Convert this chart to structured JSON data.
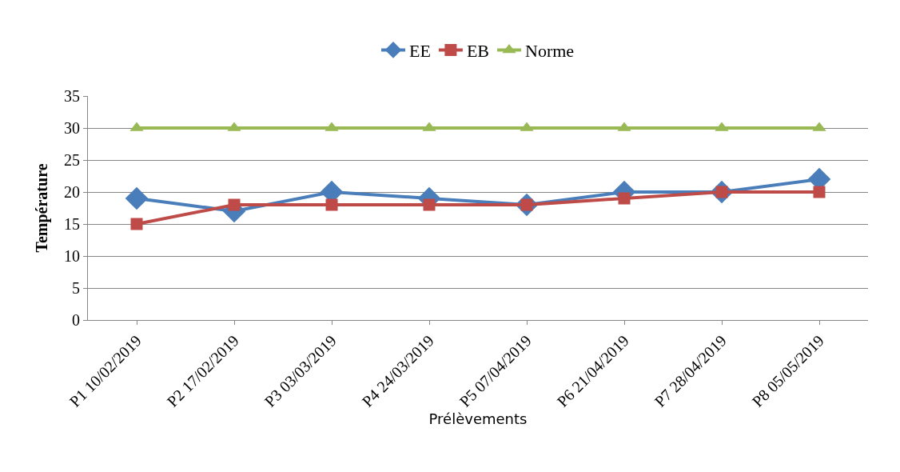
{
  "chart_data": {
    "type": "line",
    "xlabel": "Prélèvements",
    "ylabel": "Température",
    "categories": [
      "P1 10/02/2019",
      "P2 17/02/2019",
      "P3 03/03/2019",
      "P4 24/03/2019",
      "P5 07/04/2019",
      "P6 21/04/2019",
      "P7 28/04/2019",
      "P8 05/05/2019"
    ],
    "series": [
      {
        "name": "EE",
        "color": "#4a7ebb",
        "marker": "diamond",
        "values": [
          19,
          17,
          20,
          19,
          18,
          20,
          20,
          22
        ]
      },
      {
        "name": "EB",
        "color": "#be4b48",
        "marker": "square",
        "values": [
          15,
          18,
          18,
          18,
          18,
          19,
          20,
          20
        ]
      },
      {
        "name": "Norme",
        "color": "#98b954",
        "marker": "triangle",
        "values": [
          30,
          30,
          30,
          30,
          30,
          30,
          30,
          30
        ]
      }
    ],
    "ylim": [
      0,
      35
    ],
    "yticks": [
      0,
      5,
      10,
      15,
      20,
      25,
      30,
      35
    ],
    "grid": "y",
    "legend": "top"
  }
}
